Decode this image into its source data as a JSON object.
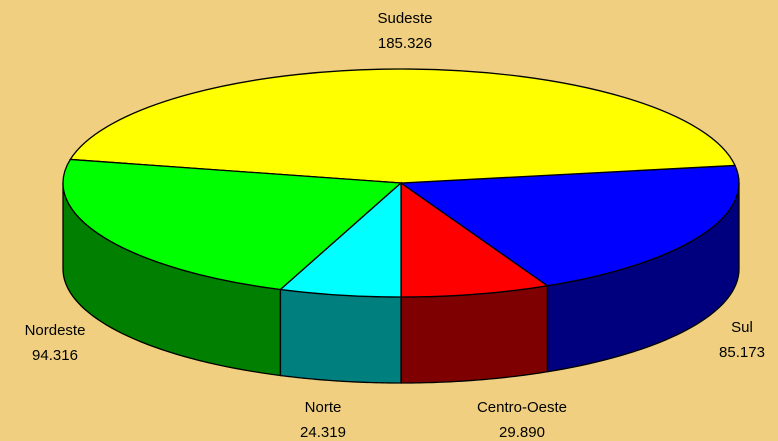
{
  "chart_data": {
    "type": "pie3d",
    "categories": [
      "Centro-Oeste",
      "Sul",
      "Sudeste",
      "Nordeste",
      "Norte"
    ],
    "values": [
      29.89,
      85.173,
      185.326,
      94.316,
      24.319
    ],
    "value_labels": [
      "29.890",
      "85.173",
      "185.326",
      "94.316",
      "24.319"
    ],
    "colors": [
      "#ff0000",
      "#0000ff",
      "#ffff00",
      "#00ff00",
      "#00ffff"
    ]
  }
}
